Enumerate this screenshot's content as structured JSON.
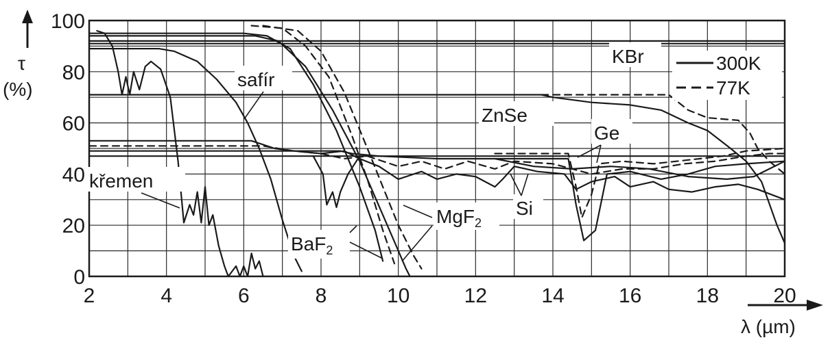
{
  "chart_data": {
    "type": "line",
    "ylabel_symbol": "τ",
    "ylabel_unit": "(%)",
    "xlabel": "λ (µm)",
    "xlim": [
      2,
      20
    ],
    "ylim": [
      0,
      100
    ],
    "x_ticks": [
      "2",
      "4",
      "6",
      "8",
      "10",
      "12",
      "14",
      "16",
      "18",
      "20"
    ],
    "y_ticks": [
      "0",
      "20",
      "40",
      "60",
      "80",
      "100"
    ],
    "grid": true,
    "legend": {
      "position": "top-right",
      "entries": [
        {
          "label": "300K",
          "style": "solid"
        },
        {
          "label": "77K",
          "style": "dashed"
        }
      ]
    },
    "labels": {
      "kbr": "KBr",
      "safir": "safír",
      "znse": "ZnSe",
      "ge": "Ge",
      "kremen": "křemen",
      "si": "Si",
      "mgf2": "MgF",
      "mgf2_sub": "2",
      "baf2": "BaF",
      "baf2_sub": "2"
    },
    "series": [
      {
        "name": "KBr",
        "style": "solid",
        "points": [
          [
            2,
            92
          ],
          [
            20,
            92
          ]
        ]
      },
      {
        "name": "KBr",
        "style": "solid",
        "points": [
          [
            2,
            91
          ],
          [
            20,
            91
          ]
        ]
      },
      {
        "name": "ZnSe",
        "style": "solid",
        "points": [
          [
            2,
            71
          ],
          [
            13.7,
            71
          ],
          [
            14,
            70
          ],
          [
            15,
            68
          ],
          [
            16,
            67
          ],
          [
            16.8,
            65
          ],
          [
            17.5,
            60
          ],
          [
            18,
            57
          ],
          [
            18.6,
            50
          ],
          [
            19,
            45
          ],
          [
            19.4,
            37
          ],
          [
            19.8,
            20
          ],
          [
            20,
            13
          ]
        ]
      },
      {
        "name": "ZnSe",
        "style": "dashed",
        "points": [
          [
            13.7,
            71
          ],
          [
            17,
            71
          ],
          [
            17.5,
            65
          ],
          [
            18,
            62
          ],
          [
            18.8,
            61
          ],
          [
            19.1,
            56
          ],
          [
            19.3,
            50
          ],
          [
            19.6,
            45
          ],
          [
            20,
            40
          ]
        ]
      },
      {
        "name": "Ge",
        "style": "dashed",
        "points": [
          [
            12.5,
            48
          ],
          [
            14.4,
            48
          ],
          [
            14.6,
            35
          ],
          [
            14.75,
            23
          ],
          [
            15,
            32
          ],
          [
            15.2,
            44
          ],
          [
            15.8,
            45
          ],
          [
            16.6,
            44
          ],
          [
            17.2,
            45
          ],
          [
            17.8,
            46
          ],
          [
            18.4,
            47
          ],
          [
            19,
            49
          ],
          [
            20,
            50
          ]
        ]
      },
      {
        "name": "Ge",
        "style": "solid",
        "points": [
          [
            12.5,
            46
          ],
          [
            14.4,
            46
          ],
          [
            14.6,
            28
          ],
          [
            14.8,
            14
          ],
          [
            15.1,
            18
          ],
          [
            15.4,
            40
          ],
          [
            16,
            41
          ],
          [
            16.8,
            38
          ],
          [
            17.5,
            40
          ],
          [
            18.2,
            43
          ],
          [
            19,
            44
          ],
          [
            20,
            45
          ]
        ]
      },
      {
        "name": "Si",
        "style": "solid",
        "points": [
          [
            2,
            53
          ],
          [
            6.2,
            53
          ],
          [
            6.8,
            50
          ],
          [
            7.3,
            49
          ],
          [
            8,
            48
          ],
          [
            8.6,
            49
          ],
          [
            9,
            46
          ],
          [
            9.5,
            43
          ],
          [
            10,
            38
          ],
          [
            10.6,
            41
          ],
          [
            11,
            38
          ],
          [
            11.5,
            40
          ],
          [
            12,
            39
          ],
          [
            12.5,
            35
          ],
          [
            12.7,
            38
          ],
          [
            13,
            43
          ],
          [
            13.6,
            41
          ],
          [
            14.3,
            40
          ],
          [
            14.6,
            34
          ],
          [
            15,
            37
          ],
          [
            15.6,
            39
          ],
          [
            16,
            35
          ],
          [
            16.6,
            37
          ],
          [
            17,
            34
          ],
          [
            17.6,
            33
          ],
          [
            18.2,
            35
          ],
          [
            18.8,
            36
          ],
          [
            19.3,
            34
          ],
          [
            20,
            30
          ]
        ]
      },
      {
        "name": "Si",
        "style": "dashed",
        "points": [
          [
            2,
            51
          ],
          [
            6.5,
            51
          ],
          [
            7.3,
            49
          ],
          [
            8,
            48
          ],
          [
            8.6,
            46
          ],
          [
            9.2,
            47
          ],
          [
            10,
            43
          ],
          [
            10.6,
            45
          ],
          [
            11.2,
            42
          ],
          [
            11.8,
            45
          ],
          [
            12.5,
            42
          ],
          [
            13,
            45
          ],
          [
            14,
            44
          ],
          [
            15,
            40
          ],
          [
            15.8,
            42
          ],
          [
            16.6,
            42
          ],
          [
            17.4,
            44
          ],
          [
            18.2,
            45
          ],
          [
            19,
            47
          ],
          [
            19.6,
            48
          ],
          [
            20,
            48
          ]
        ]
      },
      {
        "name": "Si",
        "style": "solid",
        "points": [
          [
            2,
            49
          ],
          [
            8.5,
            49
          ],
          [
            8.8,
            48
          ],
          [
            9.5,
            47
          ],
          [
            11,
            46
          ],
          [
            12.5,
            46
          ],
          [
            13.5,
            43
          ],
          [
            14.5,
            42
          ],
          [
            15.5,
            43
          ],
          [
            16.5,
            42
          ],
          [
            17.5,
            39
          ],
          [
            18.5,
            38
          ],
          [
            19.2,
            39
          ],
          [
            19.6,
            42
          ],
          [
            20,
            45
          ]
        ]
      },
      {
        "name": "Si",
        "style": "solid",
        "points": [
          [
            7.8,
            47
          ],
          [
            8.05,
            40
          ],
          [
            8.15,
            28
          ],
          [
            8.3,
            33
          ],
          [
            8.4,
            27
          ],
          [
            8.5,
            33
          ],
          [
            8.7,
            40
          ],
          [
            9,
            47
          ]
        ]
      },
      {
        "name": "Si",
        "style": "solid",
        "points": [
          [
            2,
            47
          ],
          [
            20,
            47
          ]
        ]
      },
      {
        "name": "safír",
        "style": "solid",
        "points": [
          [
            2,
            89
          ],
          [
            3.8,
            89
          ],
          [
            4.2,
            88
          ],
          [
            4.8,
            84
          ],
          [
            5.3,
            77
          ],
          [
            5.8,
            68
          ],
          [
            6.1,
            60
          ],
          [
            6.4,
            50
          ],
          [
            6.7,
            38
          ],
          [
            7,
            22
          ],
          [
            7.3,
            8
          ],
          [
            7.5,
            2
          ]
        ]
      },
      {
        "name": "křemen",
        "style": "solid",
        "points": [
          [
            2.2,
            96
          ],
          [
            2.4,
            95
          ],
          [
            2.6,
            90
          ],
          [
            2.75,
            80
          ],
          [
            2.85,
            71
          ],
          [
            2.95,
            78
          ],
          [
            3.05,
            71
          ],
          [
            3.15,
            80
          ],
          [
            3.3,
            73
          ],
          [
            3.45,
            82
          ],
          [
            3.6,
            84
          ],
          [
            3.85,
            81
          ],
          [
            4.1,
            70
          ],
          [
            4.3,
            45
          ],
          [
            4.45,
            21
          ],
          [
            4.6,
            28
          ],
          [
            4.7,
            24
          ],
          [
            4.8,
            33
          ],
          [
            4.9,
            21
          ],
          [
            5,
            35
          ],
          [
            5.1,
            20
          ],
          [
            5.2,
            24
          ],
          [
            5.35,
            12
          ],
          [
            5.5,
            4
          ],
          [
            5.6,
            0
          ],
          [
            5.8,
            4
          ],
          [
            5.9,
            0
          ],
          [
            6.0,
            4
          ],
          [
            6.1,
            0
          ],
          [
            6.2,
            9
          ],
          [
            6.3,
            3
          ],
          [
            6.4,
            6
          ],
          [
            6.5,
            0
          ]
        ]
      },
      {
        "name": "BaF2",
        "style": "solid",
        "points": [
          [
            2,
            95
          ],
          [
            6,
            95
          ],
          [
            6.6,
            94
          ],
          [
            7.2,
            89
          ],
          [
            7.8,
            75
          ],
          [
            8.4,
            57
          ],
          [
            9,
            35
          ],
          [
            9.4,
            18
          ],
          [
            9.6,
            6
          ]
        ]
      },
      {
        "name": "BaF2",
        "style": "dashed",
        "points": [
          [
            6.2,
            98
          ],
          [
            7,
            97
          ],
          [
            7.6,
            90
          ],
          [
            8.2,
            78
          ],
          [
            8.8,
            55
          ],
          [
            9.2,
            38
          ],
          [
            9.6,
            18
          ],
          [
            9.9,
            5
          ]
        ]
      },
      {
        "name": "MgF2",
        "style": "solid",
        "points": [
          [
            2,
            94
          ],
          [
            6.3,
            94
          ],
          [
            6.9,
            92
          ],
          [
            7.6,
            82
          ],
          [
            8.3,
            65
          ],
          [
            9,
            45
          ],
          [
            9.6,
            24
          ],
          [
            10,
            10
          ],
          [
            10.2,
            3
          ],
          [
            10.3,
            0
          ]
        ]
      },
      {
        "name": "MgF2",
        "style": "dashed",
        "points": [
          [
            6.5,
            98
          ],
          [
            7.4,
            96
          ],
          [
            8,
            88
          ],
          [
            8.6,
            72
          ],
          [
            9.2,
            50
          ],
          [
            9.6,
            35
          ],
          [
            10,
            20
          ],
          [
            10.4,
            8
          ],
          [
            10.6,
            3
          ]
        ]
      }
    ]
  }
}
